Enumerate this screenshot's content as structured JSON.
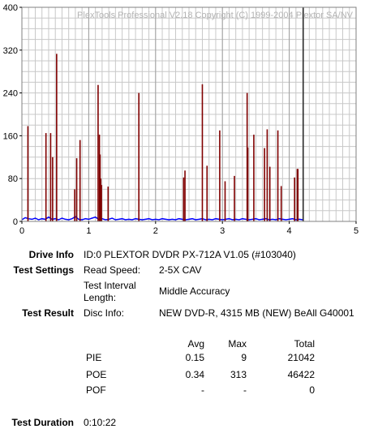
{
  "chart_data": {
    "type": "bar",
    "watermark": "PlexTools Professional V2.18 Copyright (C) 1999-2004 Plextor SA/NV",
    "xlim": [
      0,
      5
    ],
    "ylim": [
      0,
      400
    ],
    "x_ticks": [
      0,
      1,
      2,
      3,
      4,
      5
    ],
    "y_ticks": [
      0,
      80,
      160,
      240,
      320,
      400
    ],
    "grid": true,
    "series": [
      {
        "name": "PIE",
        "style": "line",
        "color": "#0000ff",
        "x": [
          0.0,
          0.05,
          0.1,
          0.15,
          0.2,
          0.25,
          0.3,
          0.35,
          0.4,
          0.45,
          0.5,
          0.55,
          0.6,
          0.65,
          0.7,
          0.75,
          0.8,
          0.85,
          0.9,
          0.95,
          1.0,
          1.05,
          1.1,
          1.15,
          1.2,
          1.25,
          1.3,
          1.35,
          1.4,
          1.45,
          1.5,
          1.55,
          1.6,
          1.65,
          1.7,
          1.75,
          1.8,
          1.85,
          1.9,
          1.95,
          2.0,
          2.05,
          2.1,
          2.15,
          2.2,
          2.25,
          2.3,
          2.35,
          2.4,
          2.45,
          2.5,
          2.55,
          2.6,
          2.65,
          2.7,
          2.75,
          2.8,
          2.85,
          2.9,
          2.95,
          3.0,
          3.05,
          3.1,
          3.15,
          3.2,
          3.25,
          3.3,
          3.35,
          3.4,
          3.45,
          3.5,
          3.55,
          3.6,
          3.65,
          3.7,
          3.75,
          3.8,
          3.85,
          3.9,
          3.95,
          4.0,
          4.05,
          4.1,
          4.15,
          4.2
        ],
        "values": [
          3,
          7,
          5,
          4,
          6,
          3,
          5,
          4,
          8,
          4,
          5,
          3,
          6,
          4,
          3,
          5,
          9,
          4,
          3,
          5,
          4,
          6,
          8,
          4,
          5,
          3,
          4,
          6,
          3,
          4,
          5,
          3,
          4,
          3,
          5,
          4,
          3,
          4,
          5,
          3,
          4,
          3,
          5,
          4,
          3,
          4,
          3,
          5,
          4,
          3,
          4,
          5,
          3,
          4,
          5,
          3,
          4,
          3,
          5,
          4,
          3,
          4,
          5,
          3,
          4,
          3,
          5,
          4,
          3,
          4,
          5,
          3,
          4,
          5,
          3,
          4,
          3,
          5,
          4,
          3,
          4,
          5,
          3,
          4,
          3
        ]
      },
      {
        "name": "POE",
        "style": "bar",
        "color": "#800000",
        "x": [
          0.09,
          0.36,
          0.43,
          0.46,
          0.52,
          0.79,
          0.82,
          0.87,
          1.14,
          1.16,
          1.17,
          1.18,
          1.19,
          1.29,
          1.75,
          2.42,
          2.44,
          2.7,
          2.77,
          2.96,
          3.04,
          3.18,
          3.37,
          3.38,
          3.47,
          3.63,
          3.67,
          3.71,
          3.83,
          3.88,
          4.08,
          4.12,
          4.13
        ],
        "values": [
          178,
          165,
          165,
          120,
          313,
          60,
          118,
          152,
          255,
          162,
          125,
          80,
          68,
          65,
          240,
          82,
          95,
          256,
          104,
          170,
          75,
          85,
          240,
          138,
          162,
          137,
          172,
          102,
          170,
          66,
          82,
          98,
          98
        ]
      },
      {
        "name": "",
        "style": "marker",
        "color": "#000000",
        "x": [
          4.21
        ],
        "values": [
          400
        ]
      }
    ]
  },
  "info": {
    "drive_info_label": "Drive Info",
    "drive_info_value": "ID:0 PLEXTOR DVDR PX-712A V1.05 (#103040)",
    "test_settings_label": "Test Settings",
    "read_speed_label": "Read Speed:",
    "read_speed_value": "2-5X CAV",
    "interval_label_1": "Test Interval",
    "interval_label_2": "Length:",
    "interval_value": "Middle Accuracy",
    "test_result_label": "Test Result",
    "disc_info_label": "Disc Info:",
    "disc_info_value": "NEW DVD-R, 4315 MB (NEW) BeAll G40001",
    "test_duration_label": "Test Duration",
    "test_duration_value": "0:10:22"
  },
  "results": {
    "headers": [
      "",
      "Avg",
      "Max",
      "Total"
    ],
    "rows": [
      {
        "name": "PIE",
        "avg": "0.15",
        "max": "9",
        "total": "21042"
      },
      {
        "name": "POE",
        "avg": "0.34",
        "max": "313",
        "total": "46422"
      },
      {
        "name": "POF",
        "avg": "-",
        "max": "-",
        "total": "0"
      }
    ]
  }
}
